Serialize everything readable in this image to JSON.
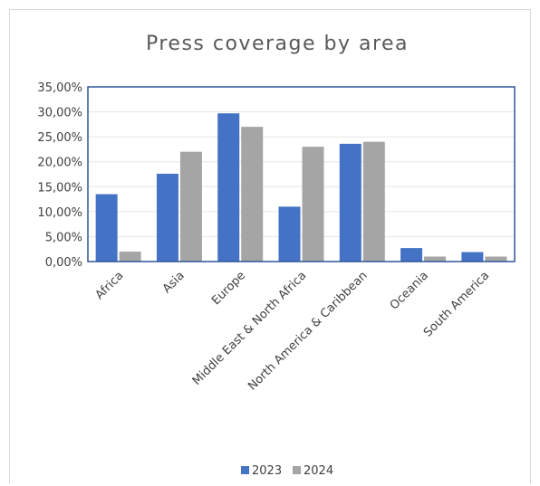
{
  "chart_data": {
    "type": "bar",
    "title": "Press coverage by area",
    "xlabel": "",
    "ylabel": "",
    "categories": [
      "Africa",
      "Asia",
      "Europe",
      "Middle East & North Africa",
      "North America & Caribbean",
      "Oceania",
      "South America"
    ],
    "series": [
      {
        "name": "2023",
        "color": "#4472C4",
        "values": [
          13.5,
          17.6,
          29.7,
          11.0,
          23.6,
          2.7,
          1.9
        ]
      },
      {
        "name": "2024",
        "color": "#A5A5A5",
        "values": [
          2.0,
          22.0,
          27.0,
          23.0,
          24.0,
          1.0,
          1.0
        ]
      }
    ],
    "ylim": [
      0,
      35
    ],
    "yticks": [
      "0,00%",
      "5,00%",
      "10,00%",
      "15,00%",
      "20,00%",
      "25,00%",
      "30,00%",
      "35,00%"
    ],
    "grid": true,
    "legend_position": "bottom",
    "plot_border_color": "#2F5597"
  }
}
